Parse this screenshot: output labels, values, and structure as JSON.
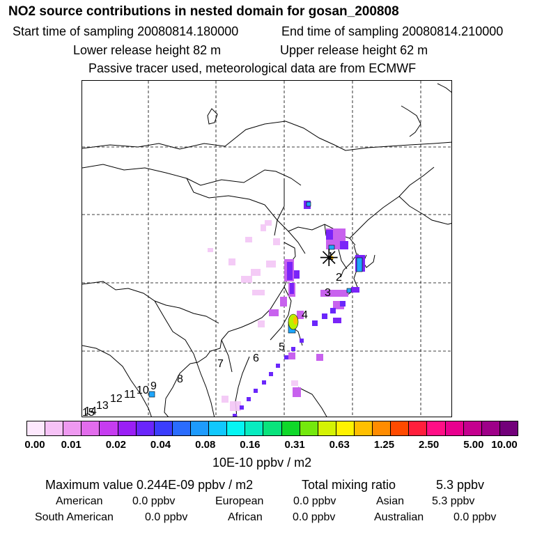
{
  "header": {
    "title": "NO2 source contributions in nested domain for gosan_200808",
    "start": "Start time of sampling 20080814.180000",
    "end": "End time of sampling 20080814.210000",
    "lower": "Lower release height   82 m",
    "upper": "Upper release height   62 m",
    "note": "Passive tracer used, meteorological data are from ECMWF"
  },
  "map": {
    "labels": [
      "1",
      "2",
      "3",
      "4",
      "5",
      "6",
      "7",
      "8",
      "9",
      "10",
      "11",
      "12",
      "13",
      "14",
      "15"
    ],
    "receptor_symbol": "✳"
  },
  "colorbar": {
    "colors": [
      "#fde8fd",
      "#f6c2f6",
      "#ee99f0",
      "#e26cec",
      "#c63cf0",
      "#9a1ff5",
      "#6a26fb",
      "#3b3dfd",
      "#2a6cfd",
      "#1e9bfd",
      "#11c8fd",
      "#05f5f3",
      "#08ecc0",
      "#09e37c",
      "#10d82a",
      "#74e80d",
      "#d4f204",
      "#fff200",
      "#ffbf00",
      "#ff8c00",
      "#ff4a00",
      "#ff1f3c",
      "#ff0f86",
      "#e8008e",
      "#c4008e",
      "#9e0088",
      "#72007a"
    ],
    "ticks": [
      "0.00",
      "0.01",
      "0.02",
      "0.04",
      "0.08",
      "0.16",
      "0.31",
      "0.63",
      "1.25",
      "2.50",
      "5.00",
      "10.00"
    ],
    "unit": "10E-10 ppbv / m2"
  },
  "stats": {
    "max_value": "Maximum value  0.244E-09 ppbv / m2",
    "total_label": "Total mixing ratio",
    "total_value": "5.3 ppbv",
    "american_label": "American",
    "american_value": "0.0 ppbv",
    "european_label": "European",
    "european_value": "0.0 ppbv",
    "asian_label": "Asian",
    "asian_value": "5.3 ppbv",
    "south_american_label": "South American",
    "south_american_value": "0.0 ppbv",
    "african_label": "African",
    "african_value": "0.0 ppbv",
    "australian_label": "Australian",
    "australian_value": "0.0 ppbv"
  }
}
